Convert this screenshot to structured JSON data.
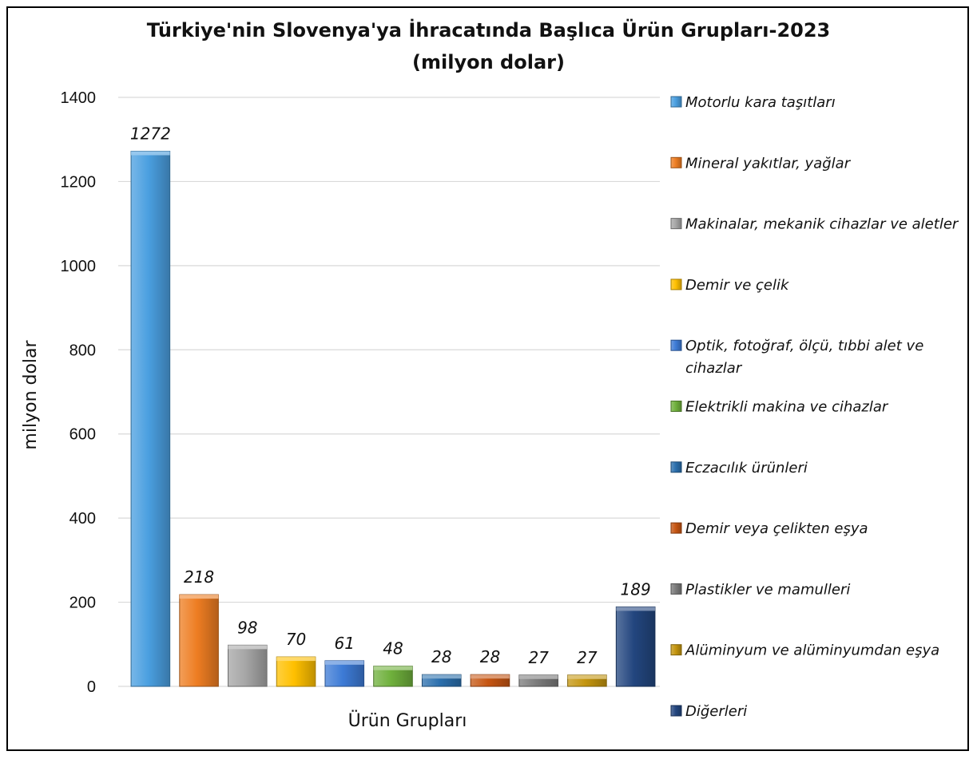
{
  "chart_data": {
    "type": "bar",
    "title": "Türkiye'nin Slovenya'ya İhracatında Başlıca Ürün Grupları-2023",
    "subtitle": "(milyon dolar)",
    "xlabel": "Ürün Grupları",
    "ylabel": "milyon dolar",
    "ylim": [
      0,
      1400
    ],
    "yticks": [
      0,
      200,
      400,
      600,
      800,
      1000,
      1200,
      1400
    ],
    "grid": true,
    "legend_position": "right",
    "categories": [
      "Motorlu kara taşıtları",
      "Mineral yakıtlar, yağlar",
      "Makinalar, mekanik cihazlar ve aletler",
      "Demir ve çelik",
      "Optik, fotoğraf, ölçü, tıbbi alet ve cihazlar",
      "Elektrikli makina ve cihazlar",
      "Eczacılık ürünleri",
      "Demir veya çelikten eşya",
      "Plastikler ve mamulleri",
      "Alüminyum ve alüminyumdan eşya",
      "Diğerleri"
    ],
    "values": [
      1272,
      218,
      98,
      70,
      61,
      48,
      28,
      28,
      27,
      27,
      189
    ],
    "colors": [
      "#4a9fe0",
      "#ee7d22",
      "#a6a6a6",
      "#ffc000",
      "#3d7bd6",
      "#6fb03c",
      "#2b6fad",
      "#c65512",
      "#7b7b7b",
      "#c4950e",
      "#23467f"
    ]
  }
}
